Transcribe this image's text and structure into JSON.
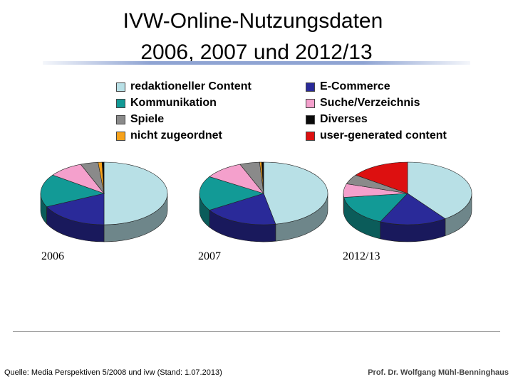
{
  "slide": {
    "title_line1": "IVW-Online-Nutzungsdaten",
    "title_line2": "2006, 2007 und 2012/13",
    "source": "Quelle: Media Perspektiven 5/2008 und  ivw (Stand: 1.07.2013)",
    "author": "Prof. Dr. Wolfgang Mühl-Benninghaus"
  },
  "chart_data": {
    "type": "pie",
    "categories": [
      {
        "label": "redaktioneller Content",
        "color": "#b8e0e6"
      },
      {
        "label": "Kommunikation",
        "color": "#129a96"
      },
      {
        "label": "Spiele",
        "color": "#8a8a8a"
      },
      {
        "label": "nicht zugeordnet",
        "color": "#f7a21b"
      },
      {
        "label": "E-Commerce",
        "color": "#2a2a99"
      },
      {
        "label": "Suche/Verzeichnis",
        "color": "#f4a0cc"
      },
      {
        "label": "Diverses",
        "color": "#0a0a0a"
      },
      {
        "label": "user-generated content",
        "color": "#dd1010"
      }
    ],
    "pies": [
      {
        "year": "2006",
        "values": {
          "redaktioneller Content": 50,
          "E-Commerce": 18,
          "Kommunikation": 17,
          "Suche/Verzeichnis": 9,
          "Spiele": 4.5,
          "nicht zugeordnet": 1,
          "Diverses": 0.5,
          "user-generated content": 0
        }
      },
      {
        "year": "2007",
        "values": {
          "redaktioneller Content": 47,
          "E-Commerce": 19,
          "Kommunikation": 18,
          "Suche/Verzeichnis": 10,
          "Spiele": 5,
          "nicht zugeordnet": 0.5,
          "Diverses": 0.5,
          "user-generated content": 0
        }
      },
      {
        "year": "2012/13",
        "values": {
          "redaktioneller Content": 40,
          "E-Commerce": 17,
          "Kommunikation": 16,
          "Suche/Verzeichnis": 7,
          "Spiele": 5,
          "nicht zugeordnet": 0,
          "Diverses": 0,
          "user-generated content": 15
        }
      }
    ]
  }
}
